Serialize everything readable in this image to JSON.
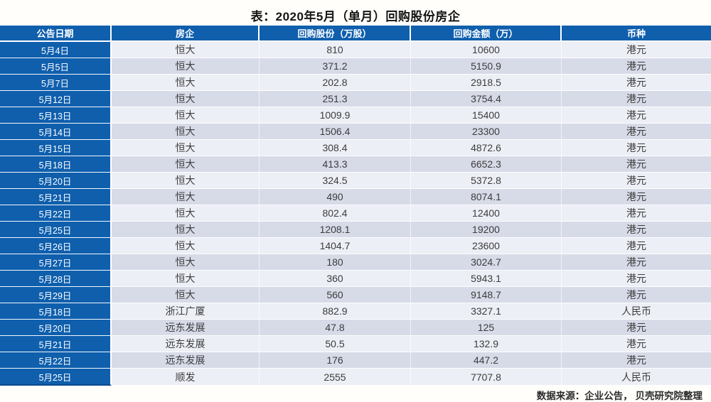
{
  "title": "表：2020年5月（单月）回购股份房企",
  "chart_data": {
    "type": "table",
    "title": "表：2020年5月（单月）回购股份房企",
    "columns": [
      "公告日期",
      "房企",
      "回购股份（万股）",
      "回购金额（万）",
      "币种"
    ],
    "rows": [
      [
        "5月4日",
        "恒大",
        810,
        10600,
        "港元"
      ],
      [
        "5月5日",
        "恒大",
        371.2,
        5150.9,
        "港元"
      ],
      [
        "5月7日",
        "恒大",
        202.8,
        2918.5,
        "港元"
      ],
      [
        "5月12日",
        "恒大",
        251.3,
        3754.4,
        "港元"
      ],
      [
        "5月13日",
        "恒大",
        1009.9,
        15400,
        "港元"
      ],
      [
        "5月14日",
        "恒大",
        1506.4,
        23300,
        "港元"
      ],
      [
        "5月15日",
        "恒大",
        308.4,
        4872.6,
        "港元"
      ],
      [
        "5月18日",
        "恒大",
        413.3,
        6652.3,
        "港元"
      ],
      [
        "5月20日",
        "恒大",
        324.5,
        5372.8,
        "港元"
      ],
      [
        "5月21日",
        "恒大",
        490,
        8074.1,
        "港元"
      ],
      [
        "5月22日",
        "恒大",
        802.4,
        12400,
        "港元"
      ],
      [
        "5月25日",
        "恒大",
        1208.1,
        19200,
        "港元"
      ],
      [
        "5月26日",
        "恒大",
        1404.7,
        23600,
        "港元"
      ],
      [
        "5月27日",
        "恒大",
        180,
        3024.7,
        "港元"
      ],
      [
        "5月28日",
        "恒大",
        360,
        5943.1,
        "港元"
      ],
      [
        "5月29日",
        "恒大",
        560,
        9148.7,
        "港元"
      ],
      [
        "5月18日",
        "浙江广厦",
        882.9,
        3327.1,
        "人民币"
      ],
      [
        "5月20日",
        "远东发展",
        47.8,
        125,
        "港元"
      ],
      [
        "5月21日",
        "远东发展",
        50.5,
        132.9,
        "港元"
      ],
      [
        "5月22日",
        "远东发展",
        176,
        447.2,
        "港元"
      ],
      [
        "5月25日",
        "顺发",
        2555,
        7707.8,
        "人民币"
      ]
    ],
    "source_note": "数据来源：企业公告， 贝壳研究院整理"
  },
  "colors": {
    "header_bg": "#0F5FAD",
    "header_text": "#FFFFFF",
    "row_light": "#EDEFF6",
    "row_dark": "#D7DBE8",
    "cell_text": "#3C3C3C",
    "title_text": "#141414"
  }
}
